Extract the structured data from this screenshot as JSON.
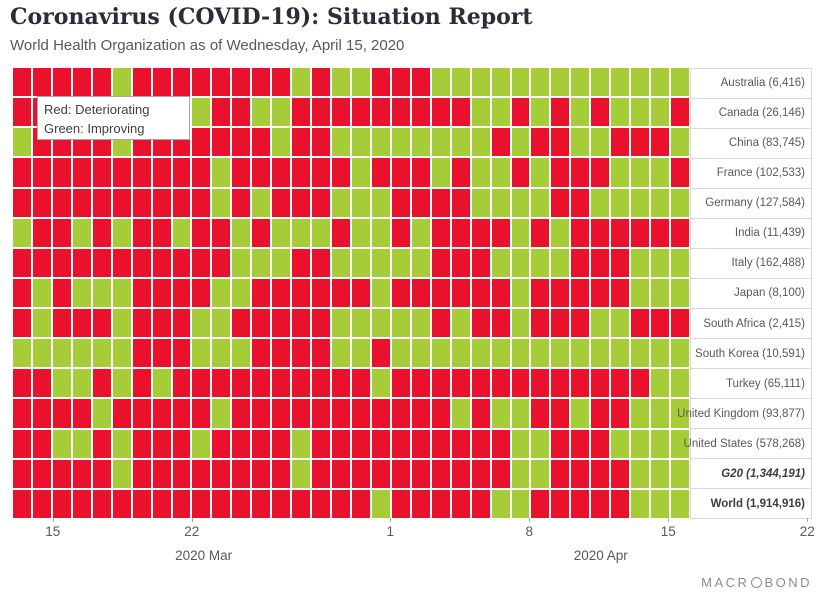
{
  "title": "Coronavirus (COVID-19): Situation Report",
  "subtitle": "World Health Organization as of Wednesday, April 15, 2020",
  "legend": {
    "red": "Red: Deteriorating",
    "green": "Green: Improving"
  },
  "footer": {
    "logo_prefix": "MACR",
    "logo_suffix": "BOND"
  },
  "chart_data": {
    "type": "heatmap",
    "grid": "on-white-gaps",
    "legend_position": "top-left-overlay",
    "cell_colors": {
      "R": "#e9112b",
      "G": "#a6cd38"
    },
    "color_meaning": {
      "R": "Deteriorating",
      "G": "Improving"
    },
    "columns": [
      "Mar 13",
      "Mar 14",
      "Mar 15",
      "Mar 16",
      "Mar 17",
      "Mar 18",
      "Mar 19",
      "Mar 20",
      "Mar 21",
      "Mar 22",
      "Mar 23",
      "Mar 24",
      "Mar 25",
      "Mar 26",
      "Mar 27",
      "Mar 28",
      "Mar 29",
      "Mar 30",
      "Mar 31",
      "Apr 1",
      "Apr 2",
      "Apr 3",
      "Apr 4",
      "Apr 5",
      "Apr 6",
      "Apr 7",
      "Apr 8",
      "Apr 9",
      "Apr 10",
      "Apr 11",
      "Apr 12",
      "Apr 13",
      "Apr 14",
      "Apr 15"
    ],
    "x_ticks": [
      {
        "label": "15",
        "day": 2
      },
      {
        "label": "22",
        "day": 9
      },
      {
        "label": "1",
        "day": 19
      },
      {
        "label": "8",
        "day": 26
      },
      {
        "label": "15",
        "day": 33
      },
      {
        "label": "22",
        "day": 40
      }
    ],
    "month_labels": [
      {
        "label": "2020 Mar",
        "day": 9.6
      },
      {
        "label": "2020 Apr",
        "day": 29.6
      }
    ],
    "rows": [
      {
        "label": "Australia (6,416)",
        "style": "normal",
        "pattern": "RRRRRGRRRRRRRRGRGGRRRGGGGGGGGGGGGG"
      },
      {
        "label": "Canada (26,146)",
        "style": "normal",
        "pattern": "RRRRRRRRRGRRGGRRRRRRRRRGGRGRGRGGGR"
      },
      {
        "label": "China (83,745)",
        "style": "normal",
        "pattern": "GRRRRGRRRRRRRGRRGGGGGGGGRGRRGGRRRG"
      },
      {
        "label": "France (102,533)",
        "style": "normal",
        "pattern": "RRRRRRRRRRGRRRRRRGRRRGRGGRGRRRGGGR"
      },
      {
        "label": "Germany (127,584)",
        "style": "normal",
        "pattern": "RRRRRRRRRRGRGRRRGGGRRRRGGGGRRGGGGG"
      },
      {
        "label": "India (11,439)",
        "style": "normal",
        "pattern": "GRRGRGRRGRRGRGGGRGGRGRRRRGRGRRRRRR"
      },
      {
        "label": "Italy (162,488)",
        "style": "normal",
        "pattern": "RRRRRRRRRRRGGGRRGGGGGRRRGGGGRRRGGG"
      },
      {
        "label": "Japan (8,100)",
        "style": "normal",
        "pattern": "RGRGGGRRRRGGRRRRRRGRRRRRRGRRRRRGGG"
      },
      {
        "label": "South Africa (2,415)",
        "style": "normal",
        "pattern": "RGRRRGRRRGGRRRRRGGGGGRGRRGRRRGGRRR"
      },
      {
        "label": "South Korea (10,591)",
        "style": "normal",
        "pattern": "GGGGGGRRRGGGRRRRGGRGGGGGGGGGGGGGGG"
      },
      {
        "label": "Turkey (65,111)",
        "style": "normal",
        "pattern": "RRGGRGRGRRRRRRRRRRGRRRRRRRRRRRRRGG"
      },
      {
        "label": "United Kingdom (93,877)",
        "style": "normal",
        "pattern": "RRRRGRRRRRGRRRRRRRRRRRGRGGRRGRRGGG"
      },
      {
        "label": "United States (578,268)",
        "style": "normal",
        "pattern": "RRGGRGRRRGRRRRGRRRRRRRRRRGGRRRGGGG"
      },
      {
        "label": "G20 (1,344,191)",
        "style": "bolditalic",
        "pattern": "RRRRRGRRRRRRRRGRRRRRRRRRRGGRRRRGGG"
      },
      {
        "label": "World (1,914,916)",
        "style": "bold",
        "pattern": "RRRRRRRRRRRRRRRRRRGRRRRRGGRRRRRGGG"
      }
    ]
  }
}
